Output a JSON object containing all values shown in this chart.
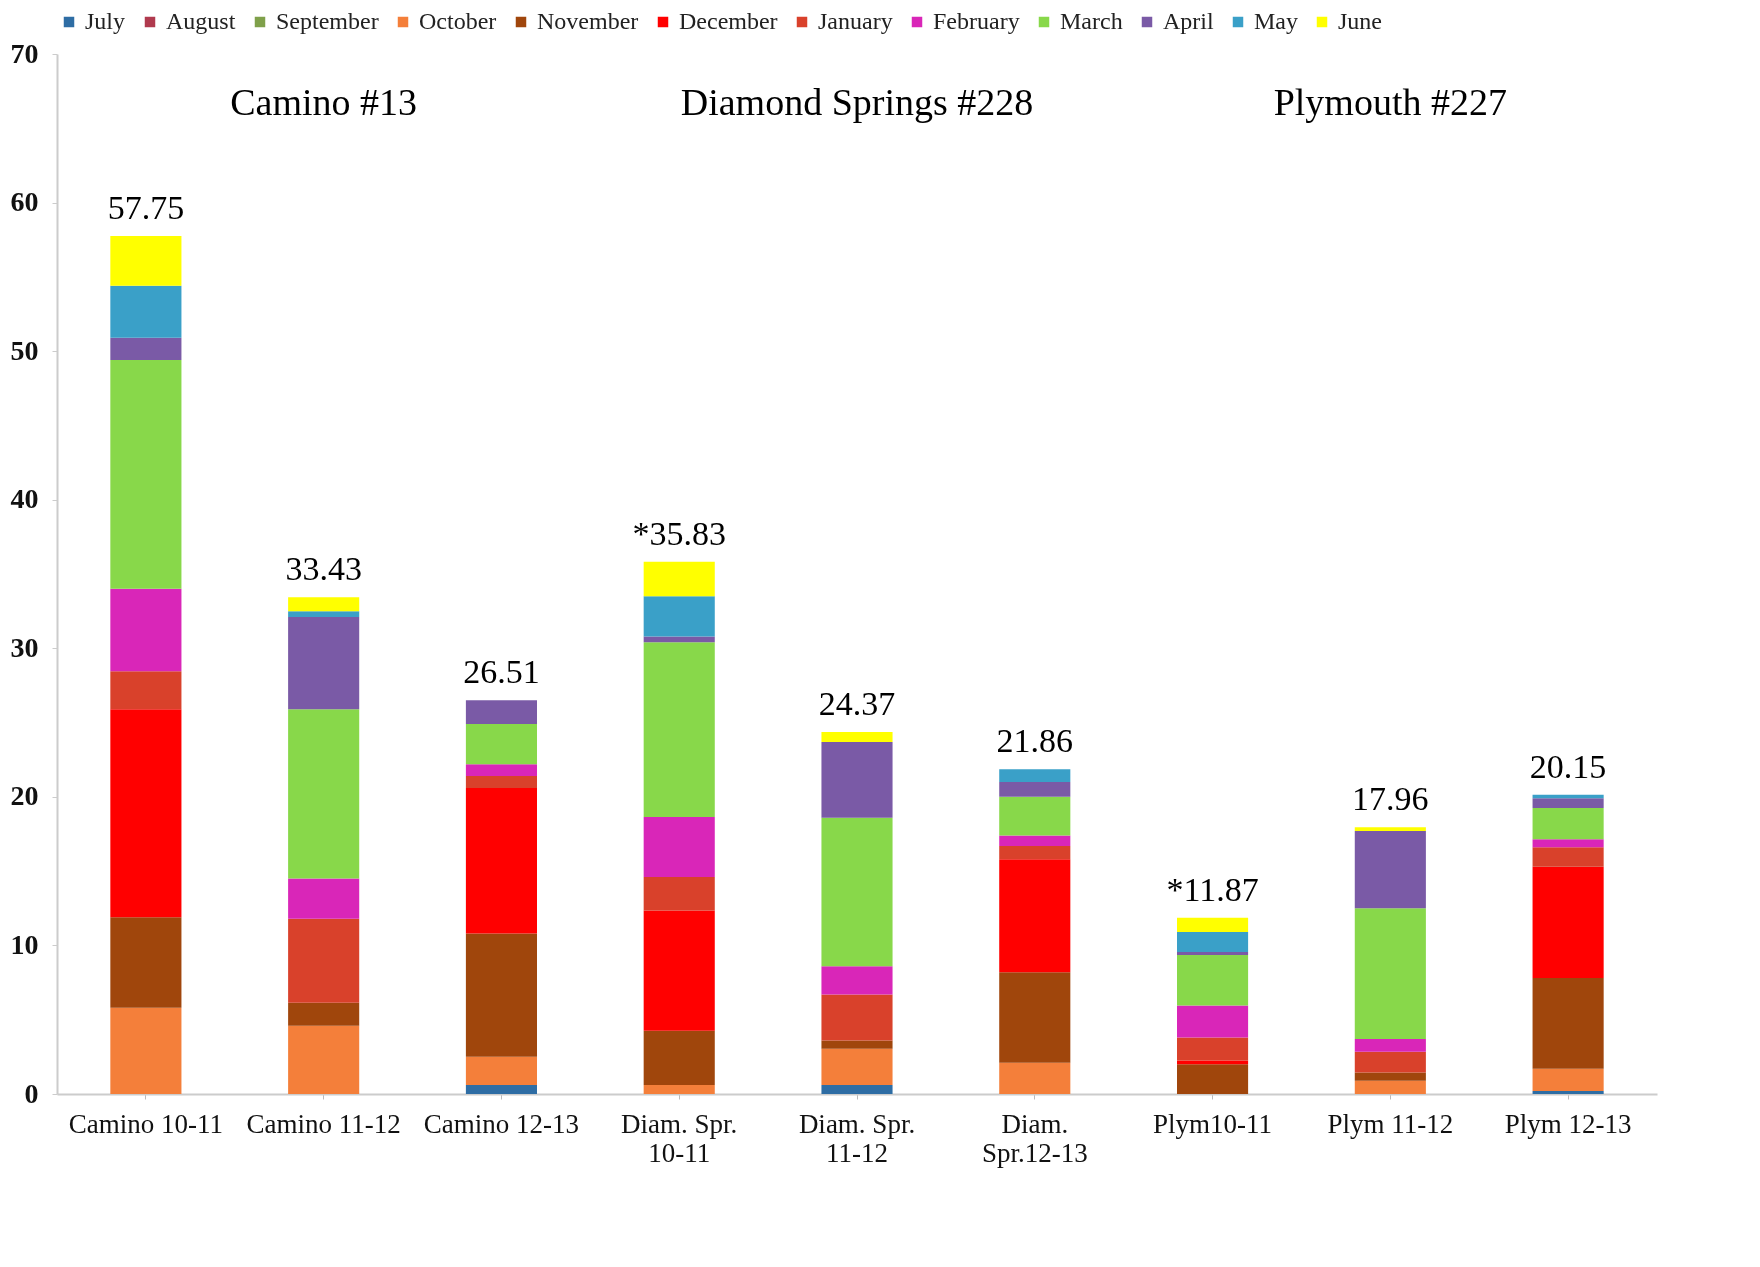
{
  "chart_data": {
    "type": "bar",
    "stacked": true,
    "categories": [
      "Camino 10-11",
      "Camino 11-12",
      "Camino 12-13",
      "Diam. Spr. 10-11",
      "Diam. Spr. 11-12",
      "Diam. Spr.12-13",
      "Plym10-11",
      "Plym 11-12",
      "Plym 12-13"
    ],
    "series": [
      {
        "name": "July",
        "color": "#2e6da4",
        "values": [
          0,
          0,
          0.6,
          0,
          0.6,
          0,
          0,
          0,
          0.2
        ]
      },
      {
        "name": "August",
        "color": "#b03a4e",
        "values": [
          0,
          0,
          0,
          0,
          0,
          0,
          0,
          0,
          0
        ]
      },
      {
        "name": "September",
        "color": "#7fa04a",
        "values": [
          0,
          0,
          0,
          0,
          0,
          0,
          0,
          0,
          0
        ]
      },
      {
        "name": "October",
        "color": "#f47f3a",
        "values": [
          5.8,
          4.6,
          1.9,
          0.6,
          2.45,
          2.1,
          0,
          0.9,
          1.5
        ]
      },
      {
        "name": "November",
        "color": "#a0460c",
        "values": [
          6.1,
          1.55,
          8.3,
          3.65,
          0.55,
          6.1,
          2.0,
          0.55,
          6.1
        ]
      },
      {
        "name": "December",
        "color": "#ff0000",
        "values": [
          14.0,
          0,
          9.8,
          8.1,
          0,
          7.6,
          0.25,
          0,
          7.5
        ]
      },
      {
        "name": "January",
        "color": "#d9412b",
        "values": [
          2.55,
          5.65,
          0.8,
          2.25,
          3.1,
          0.9,
          1.55,
          1.4,
          1.3
        ]
      },
      {
        "name": "February",
        "color": "#d926b8",
        "values": [
          5.55,
          2.7,
          0.8,
          4.05,
          1.9,
          0.7,
          2.15,
          0.85,
          0.55
        ]
      },
      {
        "name": "March",
        "color": "#88d84a",
        "values": [
          15.4,
          11.4,
          2.7,
          11.75,
          10.0,
          2.6,
          3.4,
          8.8,
          2.1
        ]
      },
      {
        "name": "April",
        "color": "#7a5aa6",
        "values": [
          1.5,
          6.2,
          1.61,
          0.4,
          5.1,
          1.0,
          0.2,
          5.2,
          0.65
        ]
      },
      {
        "name": "May",
        "color": "#3aa0c8",
        "values": [
          3.5,
          0.4,
          0,
          2.7,
          0,
          0.86,
          1.35,
          0,
          0.25
        ]
      },
      {
        "name": "June",
        "color": "#ffff00",
        "values": [
          3.35,
          0.93,
          0,
          2.33,
          0.67,
          0,
          0.97,
          0.26,
          0
        ]
      }
    ],
    "totals": [
      "57.75",
      "33.43",
      "26.51",
      "*35.83",
      "24.37",
      "21.86",
      "*11.87",
      "17.96",
      "20.15"
    ],
    "annotations": [
      "Camino #13",
      "Diamond Springs  #228",
      "Plymouth #227"
    ],
    "ylim": [
      0,
      70
    ],
    "yticks": [
      0,
      10,
      20,
      30,
      40,
      50,
      60,
      70
    ],
    "grid": false,
    "legend": "top"
  }
}
